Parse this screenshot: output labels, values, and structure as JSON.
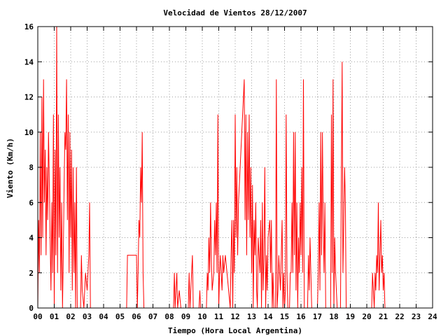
{
  "chart_data": {
    "type": "line",
    "title": "Velocidad de Vientos 28/12/2007",
    "xlabel": "Tiempo (Hora Local Argentina)",
    "ylabel": "Viento (Km/h)",
    "xlim": [
      0,
      24
    ],
    "ylim": [
      0,
      16
    ],
    "grid": true,
    "x_tick_labels": [
      "00",
      "01",
      "02",
      "03",
      "04",
      "05",
      "06",
      "07",
      "08",
      "09",
      "10",
      "11",
      "12",
      "13",
      "14",
      "15",
      "16",
      "17",
      "18",
      "19",
      "20",
      "21",
      "22",
      "23",
      "24"
    ],
    "y_tick_labels": [
      "0",
      "2",
      "4",
      "6",
      "8",
      "10",
      "12",
      "14",
      "16"
    ],
    "series": [
      {
        "color": "#ff0000",
        "points": [
          [
            0.0,
            0
          ],
          [
            0.05,
            5
          ],
          [
            0.1,
            2
          ],
          [
            0.15,
            10
          ],
          [
            0.2,
            3
          ],
          [
            0.25,
            12
          ],
          [
            0.3,
            4
          ],
          [
            0.35,
            13
          ],
          [
            0.4,
            6
          ],
          [
            0.45,
            9
          ],
          [
            0.5,
            3
          ],
          [
            0.55,
            8
          ],
          [
            0.6,
            5
          ],
          [
            0.65,
            10
          ],
          [
            0.7,
            7
          ],
          [
            0.75,
            4
          ],
          [
            0.8,
            1
          ],
          [
            0.85,
            6
          ],
          [
            0.9,
            2
          ],
          [
            0.95,
            11
          ],
          [
            1.0,
            0
          ],
          [
            1.05,
            9
          ],
          [
            1.1,
            3
          ],
          [
            1.15,
            16
          ],
          [
            1.2,
            2
          ],
          [
            1.25,
            11
          ],
          [
            1.3,
            4
          ],
          [
            1.35,
            8
          ],
          [
            1.4,
            1
          ],
          [
            1.45,
            6
          ],
          [
            1.5,
            0
          ],
          [
            1.55,
            3
          ],
          [
            1.6,
            7
          ],
          [
            1.65,
            10
          ],
          [
            1.7,
            9
          ],
          [
            1.75,
            13
          ],
          [
            1.8,
            5
          ],
          [
            1.85,
            11
          ],
          [
            1.9,
            2
          ],
          [
            1.95,
            10
          ],
          [
            2.0,
            4
          ],
          [
            2.05,
            9
          ],
          [
            2.1,
            1
          ],
          [
            2.15,
            8
          ],
          [
            2.2,
            2
          ],
          [
            2.25,
            6
          ],
          [
            2.3,
            0
          ],
          [
            2.35,
            8
          ],
          [
            2.4,
            0
          ],
          [
            2.6,
            0
          ],
          [
            2.65,
            3
          ],
          [
            2.7,
            1
          ],
          [
            2.8,
            0
          ],
          [
            2.9,
            2
          ],
          [
            3.0,
            1
          ],
          [
            3.1,
            3
          ],
          [
            3.15,
            6
          ],
          [
            3.2,
            0
          ],
          [
            3.3,
            0
          ],
          [
            5.4,
            0
          ],
          [
            5.45,
            3
          ],
          [
            6.0,
            3
          ],
          [
            6.05,
            0
          ],
          [
            6.1,
            2
          ],
          [
            6.15,
            5
          ],
          [
            6.2,
            4
          ],
          [
            6.25,
            8
          ],
          [
            6.3,
            6
          ],
          [
            6.35,
            10
          ],
          [
            6.4,
            2
          ],
          [
            6.45,
            0
          ],
          [
            7.8,
            0
          ],
          [
            8.25,
            0
          ],
          [
            8.3,
            2
          ],
          [
            8.35,
            0
          ],
          [
            8.4,
            1
          ],
          [
            8.45,
            2
          ],
          [
            8.5,
            0
          ],
          [
            8.6,
            1
          ],
          [
            8.7,
            0
          ],
          [
            9.15,
            0
          ],
          [
            9.2,
            2
          ],
          [
            9.25,
            0
          ],
          [
            9.4,
            3
          ],
          [
            9.45,
            0
          ],
          [
            9.8,
            0
          ],
          [
            9.85,
            1
          ],
          [
            9.9,
            0
          ],
          [
            10.25,
            0
          ],
          [
            10.3,
            2
          ],
          [
            10.35,
            1
          ],
          [
            10.4,
            4
          ],
          [
            10.45,
            2
          ],
          [
            10.5,
            6
          ],
          [
            10.55,
            3
          ],
          [
            10.6,
            1
          ],
          [
            10.7,
            2
          ],
          [
            10.75,
            5
          ],
          [
            10.8,
            3
          ],
          [
            10.85,
            6
          ],
          [
            10.9,
            2
          ],
          [
            10.95,
            11
          ],
          [
            11.0,
            0
          ],
          [
            11.05,
            2
          ],
          [
            11.1,
            3
          ],
          [
            11.2,
            1
          ],
          [
            11.25,
            3
          ],
          [
            11.3,
            2
          ],
          [
            11.4,
            3
          ],
          [
            11.5,
            2
          ],
          [
            11.6,
            1
          ],
          [
            11.7,
            0
          ],
          [
            11.75,
            3
          ],
          [
            11.8,
            5
          ],
          [
            11.85,
            0
          ],
          [
            11.9,
            5
          ],
          [
            11.95,
            2
          ],
          [
            12.0,
            11
          ],
          [
            12.05,
            4
          ],
          [
            12.1,
            8
          ],
          [
            12.15,
            3
          ],
          [
            12.2,
            6
          ],
          [
            12.3,
            8
          ],
          [
            12.4,
            10
          ],
          [
            12.5,
            12
          ],
          [
            12.55,
            13
          ],
          [
            12.6,
            5
          ],
          [
            12.65,
            11
          ],
          [
            12.7,
            3
          ],
          [
            12.75,
            10
          ],
          [
            12.8,
            5
          ],
          [
            12.85,
            11
          ],
          [
            12.9,
            4
          ],
          [
            12.95,
            8
          ],
          [
            13.0,
            2
          ],
          [
            13.05,
            7
          ],
          [
            13.1,
            0
          ],
          [
            13.15,
            5
          ],
          [
            13.2,
            3
          ],
          [
            13.25,
            6
          ],
          [
            13.3,
            1
          ],
          [
            13.35,
            0
          ],
          [
            13.4,
            4
          ],
          [
            13.5,
            2
          ],
          [
            13.55,
            5
          ],
          [
            13.6,
            0
          ],
          [
            13.65,
            6
          ],
          [
            13.7,
            1
          ],
          [
            13.75,
            3
          ],
          [
            13.8,
            8
          ],
          [
            13.85,
            0
          ],
          [
            13.9,
            3
          ],
          [
            13.95,
            1
          ],
          [
            14.0,
            4
          ],
          [
            14.1,
            5
          ],
          [
            14.15,
            2
          ],
          [
            14.2,
            5
          ],
          [
            14.25,
            0
          ],
          [
            14.3,
            2
          ],
          [
            14.35,
            0
          ],
          [
            14.45,
            0
          ],
          [
            14.5,
            13
          ],
          [
            14.55,
            0
          ],
          [
            14.6,
            1
          ],
          [
            14.65,
            3
          ],
          [
            14.7,
            2
          ],
          [
            14.75,
            1
          ],
          [
            14.8,
            3
          ],
          [
            14.85,
            5
          ],
          [
            14.9,
            0
          ],
          [
            14.95,
            2
          ],
          [
            15.0,
            0
          ],
          [
            15.05,
            1
          ],
          [
            15.1,
            11
          ],
          [
            15.15,
            2
          ],
          [
            15.2,
            0
          ],
          [
            15.3,
            0
          ],
          [
            15.35,
            2
          ],
          [
            15.4,
            2
          ],
          [
            15.45,
            6
          ],
          [
            15.5,
            2
          ],
          [
            15.55,
            10
          ],
          [
            15.6,
            3
          ],
          [
            15.65,
            10
          ],
          [
            15.7,
            1
          ],
          [
            15.75,
            6
          ],
          [
            15.8,
            0
          ],
          [
            15.85,
            4
          ],
          [
            15.9,
            2
          ],
          [
            15.95,
            6
          ],
          [
            16.0,
            3
          ],
          [
            16.05,
            8
          ],
          [
            16.1,
            2
          ],
          [
            16.15,
            13
          ],
          [
            16.2,
            0
          ],
          [
            16.4,
            0
          ],
          [
            16.45,
            3
          ],
          [
            16.5,
            1
          ],
          [
            16.55,
            4
          ],
          [
            16.6,
            2
          ],
          [
            16.65,
            0
          ],
          [
            16.8,
            0
          ],
          [
            17.0,
            0
          ],
          [
            17.05,
            2
          ],
          [
            17.1,
            6
          ],
          [
            17.15,
            1
          ],
          [
            17.2,
            10
          ],
          [
            17.25,
            3
          ],
          [
            17.3,
            10
          ],
          [
            17.35,
            5
          ],
          [
            17.4,
            2
          ],
          [
            17.45,
            6
          ],
          [
            17.5,
            0
          ],
          [
            17.8,
            0
          ],
          [
            17.85,
            11
          ],
          [
            17.9,
            2
          ],
          [
            17.95,
            13
          ],
          [
            18.0,
            0
          ],
          [
            18.05,
            4
          ],
          [
            18.1,
            2
          ],
          [
            18.2,
            0
          ],
          [
            18.4,
            0
          ],
          [
            18.45,
            7
          ],
          [
            18.5,
            14
          ],
          [
            18.55,
            2
          ],
          [
            18.6,
            5
          ],
          [
            18.65,
            8
          ],
          [
            18.7,
            6
          ],
          [
            18.75,
            0
          ],
          [
            20.3,
            0
          ],
          [
            20.35,
            2
          ],
          [
            20.4,
            1
          ],
          [
            20.45,
            0
          ],
          [
            20.5,
            2
          ],
          [
            20.55,
            1
          ],
          [
            20.6,
            3
          ],
          [
            20.65,
            2
          ],
          [
            20.7,
            6
          ],
          [
            20.75,
            1
          ],
          [
            20.8,
            3
          ],
          [
            20.85,
            5
          ],
          [
            20.9,
            2
          ],
          [
            20.95,
            3
          ],
          [
            21.0,
            1
          ],
          [
            21.05,
            2
          ],
          [
            21.1,
            0
          ],
          [
            21.2,
            0
          ]
        ]
      }
    ]
  }
}
